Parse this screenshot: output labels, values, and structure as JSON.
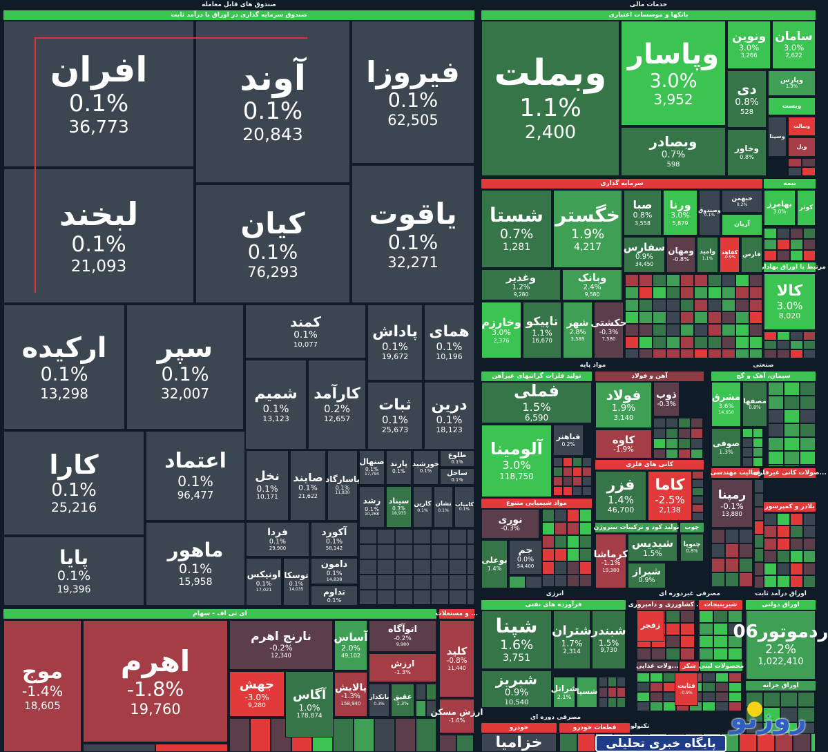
{
  "palette": {
    "neutral": "#3c4651",
    "green_dark": "#357548",
    "green_mid": "#3fa055",
    "green_bright": "#3cc452",
    "red_muted": "#5c3e4a",
    "red_mid": "#a43d45",
    "red_bright": "#e23a3a",
    "header_maroon": "#8d3c44",
    "background": "#0f1b26"
  },
  "headers": [
    {
      "label": "صندوق های قابل معامله",
      "kind": "sector"
    },
    {
      "label": "صندوق سرمایه گذاری در اوراق با درآمد ثابت",
      "kind": "sub",
      "tone": "green_bright"
    },
    {
      "label": "خدمات مالی",
      "kind": "sector"
    },
    {
      "label": "بانکها و موسسات اعتباری",
      "kind": "sub",
      "tone": "green_bright"
    },
    {
      "label": "سرمایه گذاری",
      "kind": "sub",
      "tone": "red_bright"
    },
    {
      "label": "بیمه",
      "kind": "sub",
      "tone": "green_bright"
    },
    {
      "label": "مرتبط با اوراق بهادار...",
      "kind": "sub",
      "tone": "green_bright"
    },
    {
      "label": "ای تی اف - سهام",
      "kind": "sub",
      "tone": "green_bright"
    },
    {
      "label": "... و مستغلات",
      "kind": "sub",
      "tone": "red_bright"
    },
    {
      "label": "مواد پایه",
      "kind": "sector"
    },
    {
      "label": "صنعتی",
      "kind": "sector"
    },
    {
      "label": "تولید فلزات گرانبهای غیرآهن",
      "kind": "sub",
      "tone": "green_bright"
    },
    {
      "label": "آهن و فولاد",
      "kind": "sub",
      "tone": "header_maroon"
    },
    {
      "label": "سیمان، آهک و گچ",
      "kind": "sub",
      "tone": "green_bright"
    },
    {
      "label": "مواد شیمیایی متنوع",
      "kind": "sub",
      "tone": "red_bright"
    },
    {
      "label": "کانی های فلزی",
      "kind": "sub",
      "tone": "red_bright"
    },
    {
      "label": "تولید کود و ترکیبات نیتروژن",
      "kind": "sub",
      "tone": "green_mid"
    },
    {
      "label": "چوب",
      "kind": "sub",
      "tone": "green_mid"
    },
    {
      "label": "فعالیت مهندسی",
      "kind": "sub",
      "tone": "red_bright"
    },
    {
      "label": "...صولات کانی غیرفلزی",
      "kind": "sub",
      "tone": "red_bright"
    },
    {
      "label": "بلادر و کمپرسور",
      "kind": "sub",
      "tone": "red_bright"
    },
    {
      "label": "انرژی",
      "kind": "sector"
    },
    {
      "label": "فرآورده های نفتی",
      "kind": "sub",
      "tone": "green_bright"
    },
    {
      "label": "مصرفی غیردوره ای",
      "kind": "sector"
    },
    {
      "label": "اوراق درآمد ثابت",
      "kind": "sector"
    },
    {
      "label": "اوراق دولتی",
      "kind": "sub",
      "tone": "green_bright"
    },
    {
      "label": "... کشاورزی و دامپروری",
      "kind": "sub",
      "tone": "header_maroon"
    },
    {
      "label": "شیرینیجات",
      "kind": "sub",
      "tone": "red_bright"
    },
    {
      "label": "...ولات غذایی",
      "kind": "sub",
      "tone": "red_muted"
    },
    {
      "label": "شکر",
      "kind": "sub",
      "tone": "red_bright"
    },
    {
      "label": "محصولات لبنی",
      "kind": "sub",
      "tone": "green_bright"
    },
    {
      "label": "اوراق خزانه",
      "kind": "sub",
      "tone": "green_mid"
    },
    {
      "label": "مصرفی دوره ای",
      "kind": "sector"
    },
    {
      "label": "تکنولوژی",
      "kind": "sector"
    },
    {
      "label": "خودرو",
      "kind": "sub",
      "tone": "red_bright"
    },
    {
      "label": "قطعات خودرو",
      "kind": "sub",
      "tone": "red_bright"
    }
  ],
  "tiles": [
    {
      "name": "افران",
      "change": "0.1%",
      "value": "36,773",
      "tone": "neutral"
    },
    {
      "name": "آوند",
      "change": "0.1%",
      "value": "20,843",
      "tone": "neutral"
    },
    {
      "name": "فیروزا",
      "change": "0.1%",
      "value": "62,505",
      "tone": "neutral"
    },
    {
      "name": "لبخند",
      "change": "0.1%",
      "value": "21,093",
      "tone": "neutral"
    },
    {
      "name": "کیان",
      "change": "0.1%",
      "value": "76,293",
      "tone": "neutral"
    },
    {
      "name": "یاقوت",
      "change": "0.1%",
      "value": "32,271",
      "tone": "neutral"
    },
    {
      "name": "ارکیده",
      "change": "0.1%",
      "value": "13,298",
      "tone": "neutral"
    },
    {
      "name": "سپر",
      "change": "0.1%",
      "value": "32,007",
      "tone": "neutral"
    },
    {
      "name": "کمند",
      "change": "0.1%",
      "value": "10,077",
      "tone": "neutral"
    },
    {
      "name": "پاداش",
      "change": "0.1%",
      "value": "19,672",
      "tone": "neutral"
    },
    {
      "name": "همای",
      "change": "0.1%",
      "value": "10,196",
      "tone": "neutral"
    },
    {
      "name": "شمیم",
      "change": "0.1%",
      "value": "13,123",
      "tone": "neutral"
    },
    {
      "name": "کارآمد",
      "change": "0.2%",
      "value": "12,657",
      "tone": "neutral"
    },
    {
      "name": "ثبات",
      "change": "0.1%",
      "value": "25,673",
      "tone": "neutral"
    },
    {
      "name": "درین",
      "change": "0.1%",
      "value": "18,123",
      "tone": "neutral"
    },
    {
      "name": "کارا",
      "change": "0.1%",
      "value": "25,216",
      "tone": "neutral"
    },
    {
      "name": "اعتماد",
      "change": "0.1%",
      "value": "96,477",
      "tone": "neutral"
    },
    {
      "name": "پایا",
      "change": "0.1%",
      "value": "19,396",
      "tone": "neutral"
    },
    {
      "name": "ماهور",
      "change": "0.1%",
      "value": "15,958",
      "tone": "neutral"
    },
    {
      "name": "نخل",
      "change": "0.1%",
      "value": "10,171",
      "tone": "neutral"
    },
    {
      "name": "صایند",
      "change": "0.1%",
      "value": "21,622",
      "tone": "neutral"
    },
    {
      "name": "پاسارگاد",
      "change": "0.1%",
      "value": "11,830",
      "tone": "neutral"
    },
    {
      "name": "فردا",
      "change": "0.1%",
      "value": "29,900",
      "tone": "neutral"
    },
    {
      "name": "آکورد",
      "change": "0.1%",
      "value": "58,142",
      "tone": "neutral"
    },
    {
      "name": "اونیکس",
      "change": "0.1%",
      "value": "17,021",
      "tone": "neutral"
    },
    {
      "name": "توسکا",
      "change": "0.1%",
      "value": "14,035",
      "tone": "neutral"
    },
    {
      "name": "دامون",
      "change": "0.1%",
      "value": "14,838",
      "tone": "neutral"
    },
    {
      "name": "تداوم",
      "change": "0.1%",
      "value": "",
      "tone": "neutral"
    },
    {
      "name": "صنهال",
      "change": "0.1%",
      "value": "17,794",
      "tone": "neutral"
    },
    {
      "name": "پارند",
      "change": "0.1%",
      "value": "",
      "tone": "neutral"
    },
    {
      "name": "خورشید",
      "change": "0.1%",
      "value": "",
      "tone": "neutral"
    },
    {
      "name": "طلوع",
      "change": "0.1%",
      "value": "",
      "tone": "neutral"
    },
    {
      "name": "ساحل",
      "change": "0.1%",
      "value": "",
      "tone": "neutral"
    },
    {
      "name": "رشد",
      "change": "0.1%",
      "value": "10,268",
      "tone": "neutral"
    },
    {
      "name": "سیناد",
      "change": "0.3%",
      "value": "18,933",
      "tone": "green_dark"
    },
    {
      "name": "کارین",
      "change": "0.1%",
      "value": "",
      "tone": "neutral"
    },
    {
      "name": "نشان",
      "change": "0.1%",
      "value": "",
      "tone": "neutral"
    },
    {
      "name": "کامیاب",
      "change": "0.1%",
      "value": "",
      "tone": "neutral"
    },
    {
      "name": "موج",
      "change": "-1.4%",
      "value": "18,605",
      "tone": "red_mid"
    },
    {
      "name": "اهرم",
      "change": "-1.8%",
      "value": "19,760",
      "tone": "red_mid"
    },
    {
      "name": "نارنج اهرم",
      "change": "-0.2%",
      "value": "12,340",
      "tone": "red_muted"
    },
    {
      "name": "جهش",
      "change": "-3.0%",
      "value": "9,280",
      "tone": "red_bright"
    },
    {
      "name": "آگاس",
      "change": "1.0%",
      "value": "178,874",
      "tone": "green_dark"
    },
    {
      "name": "آساس",
      "change": "2.0%",
      "value": "49,102",
      "tone": "green_mid"
    },
    {
      "name": "اتوآگاه",
      "change": "-0.2%",
      "value": "9,980",
      "tone": "red_muted"
    },
    {
      "name": "ارزش",
      "change": "-1.3%",
      "value": "",
      "tone": "red_mid"
    },
    {
      "name": "پالایش",
      "change": "-1.3%",
      "value": "158,940",
      "tone": "red_mid"
    },
    {
      "name": "بانکدار",
      "change": "0.3%",
      "value": "",
      "tone": "neutral"
    },
    {
      "name": "عقیق",
      "change": "1.3%",
      "value": "",
      "tone": "green_dark"
    },
    {
      "name": "کلید",
      "change": "-0.8%",
      "value": "11,440",
      "tone": "red_mid"
    },
    {
      "name": "ارزش مسکن",
      "change": "-1.6%",
      "value": "",
      "tone": "red_mid"
    },
    {
      "name": "وبملت",
      "change": "1.1%",
      "value": "2,400",
      "tone": "green_dark"
    },
    {
      "name": "وپاسار",
      "change": "3.0%",
      "value": "3,952",
      "tone": "green_bright"
    },
    {
      "name": "ونوین",
      "change": "3.0%",
      "value": "3,266",
      "tone": "green_bright"
    },
    {
      "name": "سامان",
      "change": "3.0%",
      "value": "2,622",
      "tone": "green_bright"
    },
    {
      "name": "وبصادر",
      "change": "0.7%",
      "value": "598",
      "tone": "green_dark"
    },
    {
      "name": "دی",
      "change": "0.8%",
      "value": "528",
      "tone": "green_dark"
    },
    {
      "name": "وخاور",
      "change": "0.8%",
      "value": "",
      "tone": "green_dark"
    },
    {
      "name": "وپارس",
      "change": "1.9%",
      "value": "",
      "tone": "green_mid"
    },
    {
      "name": "وبست",
      "change": "",
      "value": "",
      "tone": "green_bright"
    },
    {
      "name": "وسینا",
      "change": "",
      "value": "",
      "tone": "neutral"
    },
    {
      "name": "وسالت",
      "change": "",
      "value": "",
      "tone": "red_bright"
    },
    {
      "name": "وبل",
      "change": "",
      "value": "",
      "tone": "red_mid"
    },
    {
      "name": "شستا",
      "change": "0.7%",
      "value": "1,281",
      "tone": "green_dark"
    },
    {
      "name": "خگستر",
      "change": "1.9%",
      "value": "4,217",
      "tone": "green_mid"
    },
    {
      "name": "صبا",
      "change": "0.8%",
      "value": "3,558",
      "tone": "green_dark"
    },
    {
      "name": "ورنا",
      "change": "3.0%",
      "value": "5,879",
      "tone": "green_bright"
    },
    {
      "name": "وصندوق",
      "change": "0.1%",
      "value": "",
      "tone": "neutral"
    },
    {
      "name": "خبهمن",
      "change": "0.2%",
      "value": "",
      "tone": "neutral"
    },
    {
      "name": "آریان",
      "change": "",
      "value": "",
      "tone": "green_bright"
    },
    {
      "name": "سفارس",
      "change": "0.9%",
      "value": "34,450",
      "tone": "green_dark"
    },
    {
      "name": "ومهان",
      "change": "-0.8%",
      "value": "",
      "tone": "red_muted"
    },
    {
      "name": "وامید",
      "change": "1.1%",
      "value": "",
      "tone": "green_dark"
    },
    {
      "name": "کفاهد",
      "change": "-0.9%",
      "value": "",
      "tone": "red_bright"
    },
    {
      "name": "فارس",
      "change": "",
      "value": "",
      "tone": "green_dark"
    },
    {
      "name": "وغدیر",
      "change": "1.2%",
      "value": "9,280",
      "tone": "green_dark"
    },
    {
      "name": "وبانک",
      "change": "2.4%",
      "value": "9,580",
      "tone": "green_mid"
    },
    {
      "name": "وخارزم",
      "change": "3.0%",
      "value": "2,376",
      "tone": "green_bright"
    },
    {
      "name": "تاپیکو",
      "change": "1.1%",
      "value": "16,670",
      "tone": "green_dark"
    },
    {
      "name": "شهر",
      "change": "2.8%",
      "value": "3,589",
      "tone": "green_mid"
    },
    {
      "name": "حکشتی",
      "change": "-0.3%",
      "value": "7,580",
      "tone": "red_muted"
    },
    {
      "name": "بهامرز",
      "change": "3.0%",
      "value": "",
      "tone": "green_bright"
    },
    {
      "name": "کوثر",
      "change": "",
      "value": "",
      "tone": "green_bright"
    },
    {
      "name": "کالا",
      "change": "3.0%",
      "value": "8,020",
      "tone": "green_bright"
    },
    {
      "name": "فملی",
      "change": "1.5%",
      "value": "6,590",
      "tone": "green_dark"
    },
    {
      "name": "آلومینا",
      "change": "3.0%",
      "value": "118,750",
      "tone": "green_bright"
    },
    {
      "name": "فباهنر",
      "change": "0.2%",
      "value": "",
      "tone": "neutral"
    },
    {
      "name": "نوری",
      "change": "-0.3%",
      "value": "",
      "tone": "red_muted"
    },
    {
      "name": "بوعلی",
      "change": "1.4%",
      "value": "",
      "tone": "green_dark"
    },
    {
      "name": "جم",
      "change": "0.0%",
      "value": "54,400",
      "tone": "neutral"
    },
    {
      "name": "فولاد",
      "change": "1.9%",
      "value": "3,140",
      "tone": "green_mid"
    },
    {
      "name": "ذوب",
      "change": "-0.3%",
      "value": "",
      "tone": "red_muted"
    },
    {
      "name": "کاوه",
      "change": "-1.9%",
      "value": "",
      "tone": "red_mid"
    },
    {
      "name": "فزر",
      "change": "1.4%",
      "value": "46,700",
      "tone": "green_dark"
    },
    {
      "name": "کاما",
      "change": "-2.5%",
      "value": "2,138",
      "tone": "red_bright"
    },
    {
      "name": "کرماشا",
      "change": "-1.1%",
      "value": "19,380",
      "tone": "red_mid"
    },
    {
      "name": "شیدیس",
      "change": "1.5%",
      "value": "",
      "tone": "green_dark"
    },
    {
      "name": "شیراز",
      "change": "0.9%",
      "value": "",
      "tone": "green_dark"
    },
    {
      "name": "چنوپا",
      "change": "0.8%",
      "value": "",
      "tone": "green_dark"
    },
    {
      "name": "مشرق",
      "change": "3.6%",
      "value": "14,650",
      "tone": "green_bright"
    },
    {
      "name": "مصفها",
      "change": "0.8%",
      "value": "",
      "tone": "green_dark"
    },
    {
      "name": "صوفی",
      "change": "1.3%",
      "value": "",
      "tone": "green_dark"
    },
    {
      "name": "رمپنا",
      "change": "-0.1%",
      "value": "13,880",
      "tone": "red_muted"
    },
    {
      "name": "شپنا",
      "change": "1.6%",
      "value": "3,751",
      "tone": "green_dark"
    },
    {
      "name": "شتران",
      "change": "1.7%",
      "value": "2,314",
      "tone": "green_dark"
    },
    {
      "name": "شبندر",
      "change": "1.5%",
      "value": "9,730",
      "tone": "green_dark"
    },
    {
      "name": "شبریز",
      "change": "0.9%",
      "value": "10,540",
      "tone": "green_dark"
    },
    {
      "name": "شرانل",
      "change": "2.1%",
      "value": "",
      "tone": "green_mid"
    },
    {
      "name": "شسپا",
      "change": "",
      "value": "",
      "tone": "green_mid"
    },
    {
      "name": "زفجر",
      "change": "",
      "value": "",
      "tone": "red_bright"
    },
    {
      "name": "قثابت",
      "change": "-0.9%",
      "value": "",
      "tone": "red_bright"
    },
    {
      "name": "ردموتور06",
      "change": "2.2%",
      "value": "1,022,410",
      "tone": "green_mid"
    },
    {
      "name": "خزامیا",
      "change": "",
      "value": "",
      "tone": "neutral"
    }
  ],
  "watermark": {
    "brand": "روزنو",
    "tagline": "پایگاه خبری تحلیلی"
  }
}
